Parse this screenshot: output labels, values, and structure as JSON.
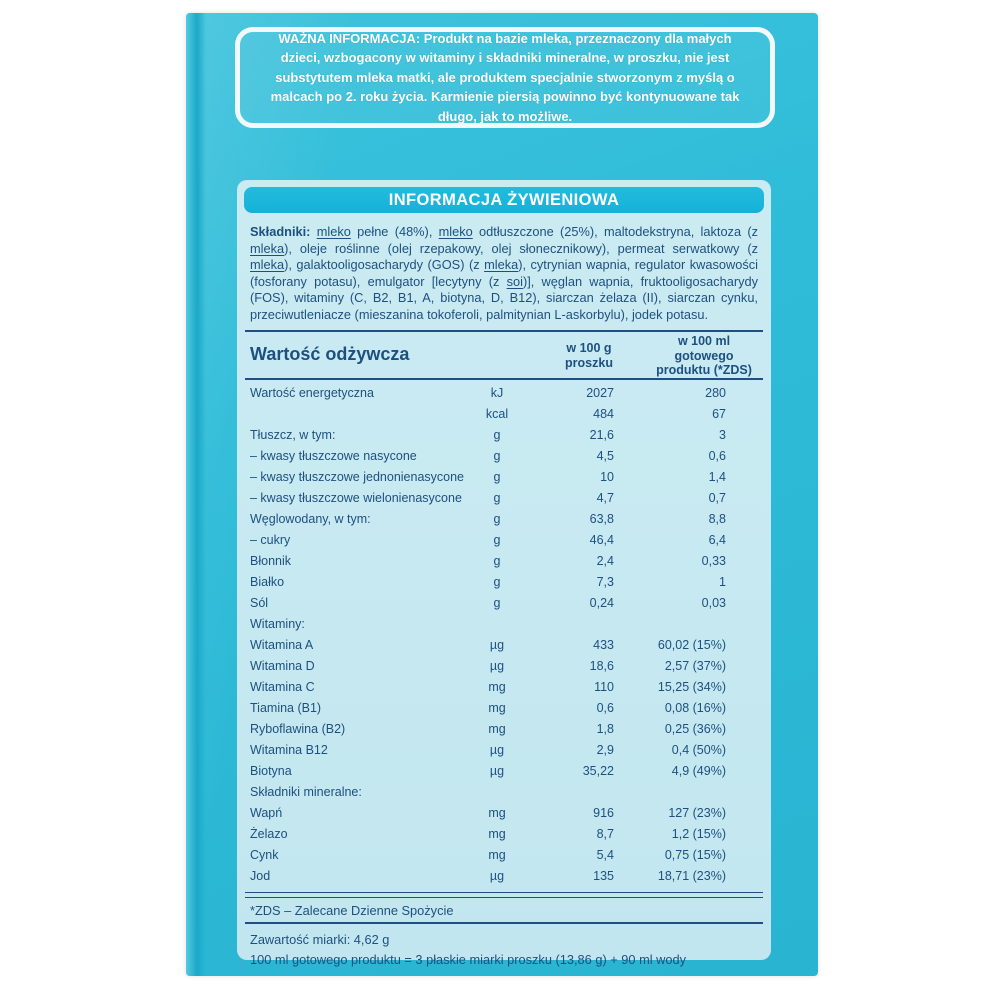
{
  "colors": {
    "box_teal": "#2ebcd8",
    "box_teal_dark": "#1ba8c8",
    "panel_blue": "#c7e9f1",
    "titlebar_teal": "#14b2d8",
    "text_navy": "#1d5080",
    "warning_text": "#ffffff"
  },
  "warning_text": "WAŻNA INFORMACJA: Produkt na bazie mleka, przeznaczony dla małych dzieci, wzbogacony w witaminy i składniki mineralne, w proszku, nie jest substytutem mleka matki, ale produktem specjalnie stworzonym z myślą o malcach po 2. roku życia. Karmienie piersią powinno być kontynuowane tak długo, jak to możliwe.",
  "panel": {
    "title": "INFORMACJA ŻYWIENIOWA",
    "ingredients_label": "Składniki: ",
    "ingredients_segments": [
      {
        "t": "mleko",
        "u": true
      },
      {
        "t": " pełne (48%), "
      },
      {
        "t": "mleko",
        "u": true
      },
      {
        "t": " odtłuszczone (25%), maltodekstryna, laktoza (z "
      },
      {
        "t": "mleka",
        "u": true
      },
      {
        "t": "), oleje roślinne (olej rzepakowy, olej słonecznikowy), permeat serwatkowy (z "
      },
      {
        "t": "mleka",
        "u": true
      },
      {
        "t": "), galaktooligosacharydy (GOS) (z "
      },
      {
        "t": "mleka",
        "u": true
      },
      {
        "t": "), cytrynian wapnia, regulator kwasowości (fosforany potasu), emulgator [lecytyny (z "
      },
      {
        "t": "soi",
        "u": true
      },
      {
        "t": ")], węglan wapnia, fruktooligosacharydy (FOS), witaminy (C, B2, B1, A, biotyna, D, B12), siarczan żelaza (II), siarczan cynku, przeciwutleniacze (mieszanina tokoferoli, palmitynian L-askorbylu), jodek potasu."
      }
    ],
    "table": {
      "header": {
        "col1": "Wartość odżywcza",
        "col2": "w 100 g\nproszku",
        "col3": "w 100 ml\ngotowego\nproduktu (*ZDS)"
      },
      "rows": [
        {
          "label": "Wartość energetyczna",
          "unit": "kJ",
          "per100g": "2027",
          "per100ml": "280"
        },
        {
          "label": "",
          "unit": "kcal",
          "per100g": "484",
          "per100ml": "67"
        },
        {
          "label": "Tłuszcz, w tym:",
          "unit": "g",
          "per100g": "21,6",
          "per100ml": "3"
        },
        {
          "label": "– kwasy tłuszczowe nasycone",
          "unit": "g",
          "per100g": "4,5",
          "per100ml": "0,6"
        },
        {
          "label": "– kwasy tłuszczowe jednonienasycone",
          "unit": "g",
          "per100g": "10",
          "per100ml": "1,4"
        },
        {
          "label": "– kwasy tłuszczowe wielonienasycone",
          "unit": "g",
          "per100g": "4,7",
          "per100ml": "0,7"
        },
        {
          "label": "Węglowodany, w tym:",
          "unit": "g",
          "per100g": "63,8",
          "per100ml": "8,8"
        },
        {
          "label": "– cukry",
          "unit": "g",
          "per100g": "46,4",
          "per100ml": "6,4"
        },
        {
          "label": "Błonnik",
          "unit": "g",
          "per100g": "2,4",
          "per100ml": "0,33"
        },
        {
          "label": "Białko",
          "unit": "g",
          "per100g": "7,3",
          "per100ml": "1"
        },
        {
          "label": "Sól",
          "unit": "g",
          "per100g": "0,24",
          "per100ml": "0,03"
        },
        {
          "label": "Witaminy:",
          "section": true
        },
        {
          "label": "Witamina A",
          "unit": "µg",
          "per100g": "433",
          "per100ml": "60,02 (15%)"
        },
        {
          "label": "Witamina D",
          "unit": "µg",
          "per100g": "18,6",
          "per100ml": "2,57 (37%)"
        },
        {
          "label": "Witamina C",
          "unit": "mg",
          "per100g": "110",
          "per100ml": "15,25 (34%)"
        },
        {
          "label": "Tiamina (B1)",
          "unit": "mg",
          "per100g": "0,6",
          "per100ml": "0,08 (16%)"
        },
        {
          "label": "Ryboflawina (B2)",
          "unit": "mg",
          "per100g": "1,8",
          "per100ml": "0,25 (36%)"
        },
        {
          "label": "Witamina B12",
          "unit": "µg",
          "per100g": "2,9",
          "per100ml": "0,4 (50%)"
        },
        {
          "label": "Biotyna",
          "unit": "µg",
          "per100g": "35,22",
          "per100ml": "4,9 (49%)"
        },
        {
          "label": "Składniki mineralne:",
          "section": true
        },
        {
          "label": "Wapń",
          "unit": "mg",
          "per100g": "916",
          "per100ml": "127 (23%)"
        },
        {
          "label": "Żelazo",
          "unit": "mg",
          "per100g": "8,7",
          "per100ml": "1,2 (15%)"
        },
        {
          "label": "Cynk",
          "unit": "mg",
          "per100g": "5,4",
          "per100ml": "0,75 (15%)"
        },
        {
          "label": "Jod",
          "unit": "µg",
          "per100g": "135",
          "per100ml": "18,71 (23%)"
        }
      ]
    },
    "zds_footnote": "*ZDS – Zalecane Dzienne Spożycie",
    "scoop_line1": "Zawartość miarki: 4,62 g",
    "scoop_line2": "100 ml gotowego produktu = 3 płaskie miarki proszku (13,86 g) + 90 ml wody"
  }
}
